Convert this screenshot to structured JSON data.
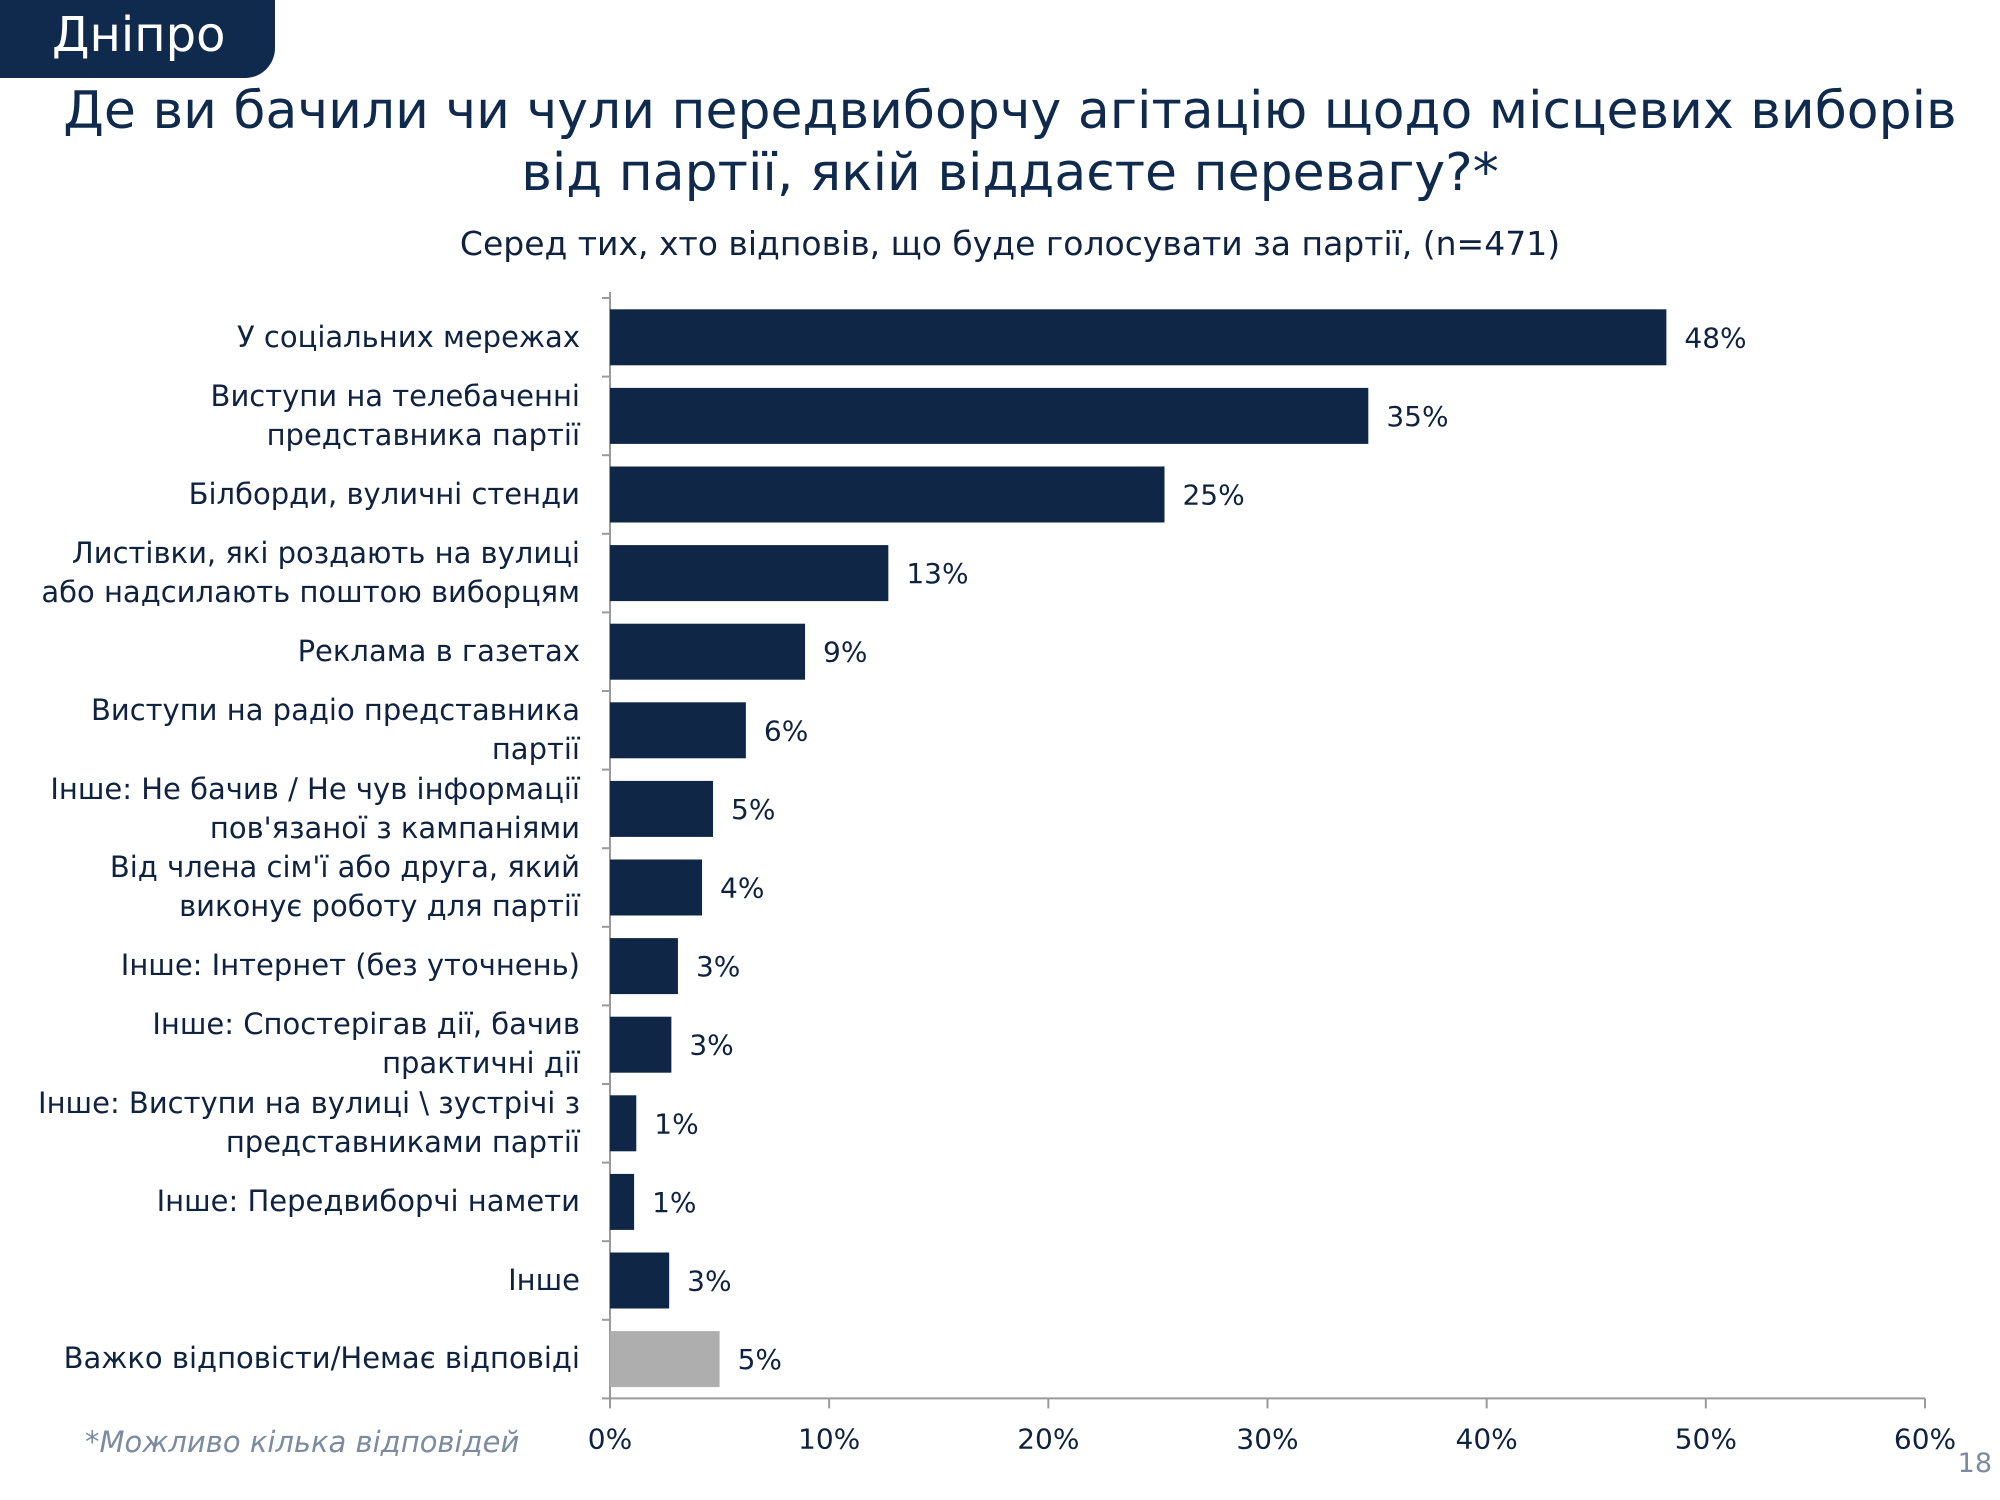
{
  "region": "Дніпро",
  "title": "Де ви бачили чи чули передвиборчу агітацію щодо місцевих виборів від партії, якій віддаєте перевагу?*",
  "subtitle": "Серед тих, хто відповів, що буде голосувати за партії, (n=471)",
  "footnote": "*Можливо кілька відповідей",
  "page_number": "18",
  "colors": {
    "bar_primary": "#0f2647",
    "bar_secondary": "#aeaeae",
    "axis": "#9a9a9a"
  },
  "chart_data": {
    "type": "bar",
    "orientation": "horizontal",
    "categories": [
      "У соціальних мережах",
      "Виступи на телебаченні представника партії",
      "Білборди, вуличні стенди",
      "Листівки, які роздають на вулиці або надсилають поштою виборцям",
      "Реклама в газетах",
      "Виступи на радіо представника партії",
      "Інше: Не бачив / Не чув інформації пов'язаної з кампаніями",
      "Від члена сім'ї або друга, який виконує роботу для партії",
      "Інше: Інтернет (без уточнень)",
      "Інше: Спостерігав дії, бачив практичні дії",
      "Інше: Виступи на вулиці \\ зустрічі з представниками партії",
      "Інше: Передвиборчі намети",
      "Інше",
      "Важко відповісти/Немає відповіді"
    ],
    "category_lines": [
      [
        "У соціальних мережах"
      ],
      [
        "Виступи на телебаченні",
        "представника партії"
      ],
      [
        "Білборди, вуличні стенди"
      ],
      [
        "Листівки, які роздають на вулиці",
        "або надсилають поштою виборцям"
      ],
      [
        "Реклама в газетах"
      ],
      [
        "Виступи на радіо представника",
        "партії"
      ],
      [
        "Інше: Не бачив / Не чув інформації",
        "пов'язаної з кампаніями"
      ],
      [
        "Від члена сім'ї або друга, який",
        "виконує роботу для партії"
      ],
      [
        "Інше: Інтернет (без уточнень)"
      ],
      [
        "Інше: Спостерігав дії, бачив",
        "практичні дії"
      ],
      [
        "Інше: Виступи на вулиці \\ зустрічі з",
        "представниками партії"
      ],
      [
        "Інше: Передвиборчі намети"
      ],
      [
        "Інше"
      ],
      [
        "Важко відповісти/Немає відповіді"
      ]
    ],
    "values": [
      48.2,
      34.6,
      25.3,
      12.7,
      8.9,
      6.2,
      4.7,
      4.2,
      3.1,
      2.8,
      1.2,
      1.1,
      2.7,
      5.0
    ],
    "value_labels": [
      "48%",
      "35%",
      "25%",
      "13%",
      "9%",
      "6%",
      "5%",
      "4%",
      "3%",
      "3%",
      "1%",
      "1%",
      "3%",
      "5%"
    ],
    "bar_colors": [
      "#0f2647",
      "#0f2647",
      "#0f2647",
      "#0f2647",
      "#0f2647",
      "#0f2647",
      "#0f2647",
      "#0f2647",
      "#0f2647",
      "#0f2647",
      "#0f2647",
      "#0f2647",
      "#0f2647",
      "#aeaeae"
    ],
    "xlim": [
      0,
      60
    ],
    "xticks": [
      0,
      10,
      20,
      30,
      40,
      50,
      60
    ],
    "xtick_labels": [
      "0%",
      "10%",
      "20%",
      "30%",
      "40%",
      "50%",
      "60%"
    ],
    "xlabel": "",
    "ylabel": "",
    "grid": false,
    "legend": "none"
  }
}
